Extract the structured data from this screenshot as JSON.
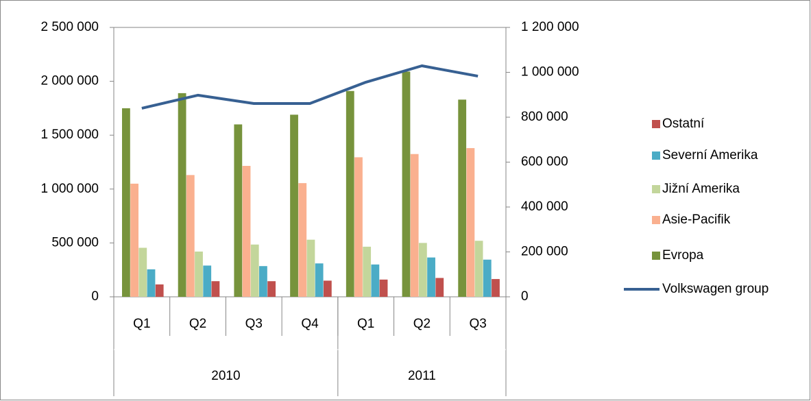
{
  "chart_data": {
    "type": "bar",
    "category_groups": [
      {
        "name": "2010",
        "categories": [
          "Q1",
          "Q2",
          "Q3",
          "Q4"
        ]
      },
      {
        "name": "2011",
        "categories": [
          "Q1",
          "Q2",
          "Q3"
        ]
      }
    ],
    "series": [
      {
        "name": "Ostatní",
        "color": "#c0504d",
        "values": [
          115000,
          145000,
          145000,
          150000,
          160000,
          175000,
          165000
        ]
      },
      {
        "name": "Severní Amerika",
        "color": "#4bacc6",
        "values": [
          255000,
          290000,
          285000,
          310000,
          300000,
          365000,
          345000
        ]
      },
      {
        "name": "Jižní Amerika",
        "color": "#c3d69b",
        "values": [
          455000,
          420000,
          485000,
          530000,
          465000,
          500000,
          520000
        ]
      },
      {
        "name": "Asie-Pacifik",
        "color": "#fab08f",
        "values": [
          1050000,
          1130000,
          1215000,
          1055000,
          1295000,
          1325000,
          1380000
        ]
      },
      {
        "name": "Evropa",
        "color": "#77933c",
        "values": [
          1750000,
          1890000,
          1600000,
          1690000,
          1910000,
          2090000,
          1830000
        ]
      },
      {
        "name": "Volkswagen group",
        "color": "#376092",
        "type": "line",
        "axis": "y2",
        "values": [
          840000,
          898000,
          861000,
          861000,
          956000,
          1029000,
          983000
        ]
      }
    ],
    "ylim": [
      0,
      2500000
    ],
    "yticks": [
      0,
      {
        "value": 500000,
        "label": "500 000"
      },
      {
        "value": 1000000,
        "label": "1 000 000"
      },
      {
        "value": 1500000,
        "label": "1 500 000"
      },
      {
        "value": 2000000,
        "label": "2 000 000"
      },
      {
        "value": 2500000,
        "label": "2 500 000"
      }
    ],
    "y2lim": [
      0,
      1200000
    ],
    "y2ticks": [
      0,
      {
        "value": 200000,
        "label": "200 000"
      },
      {
        "value": 400000,
        "label": "400 000"
      },
      {
        "value": 600000,
        "label": "600 000"
      },
      {
        "value": 800000,
        "label": "800 000"
      },
      {
        "value": 1000000,
        "label": "1 000 000"
      },
      {
        "value": 1200000,
        "label": "1 200 000"
      }
    ],
    "legend": "right"
  }
}
